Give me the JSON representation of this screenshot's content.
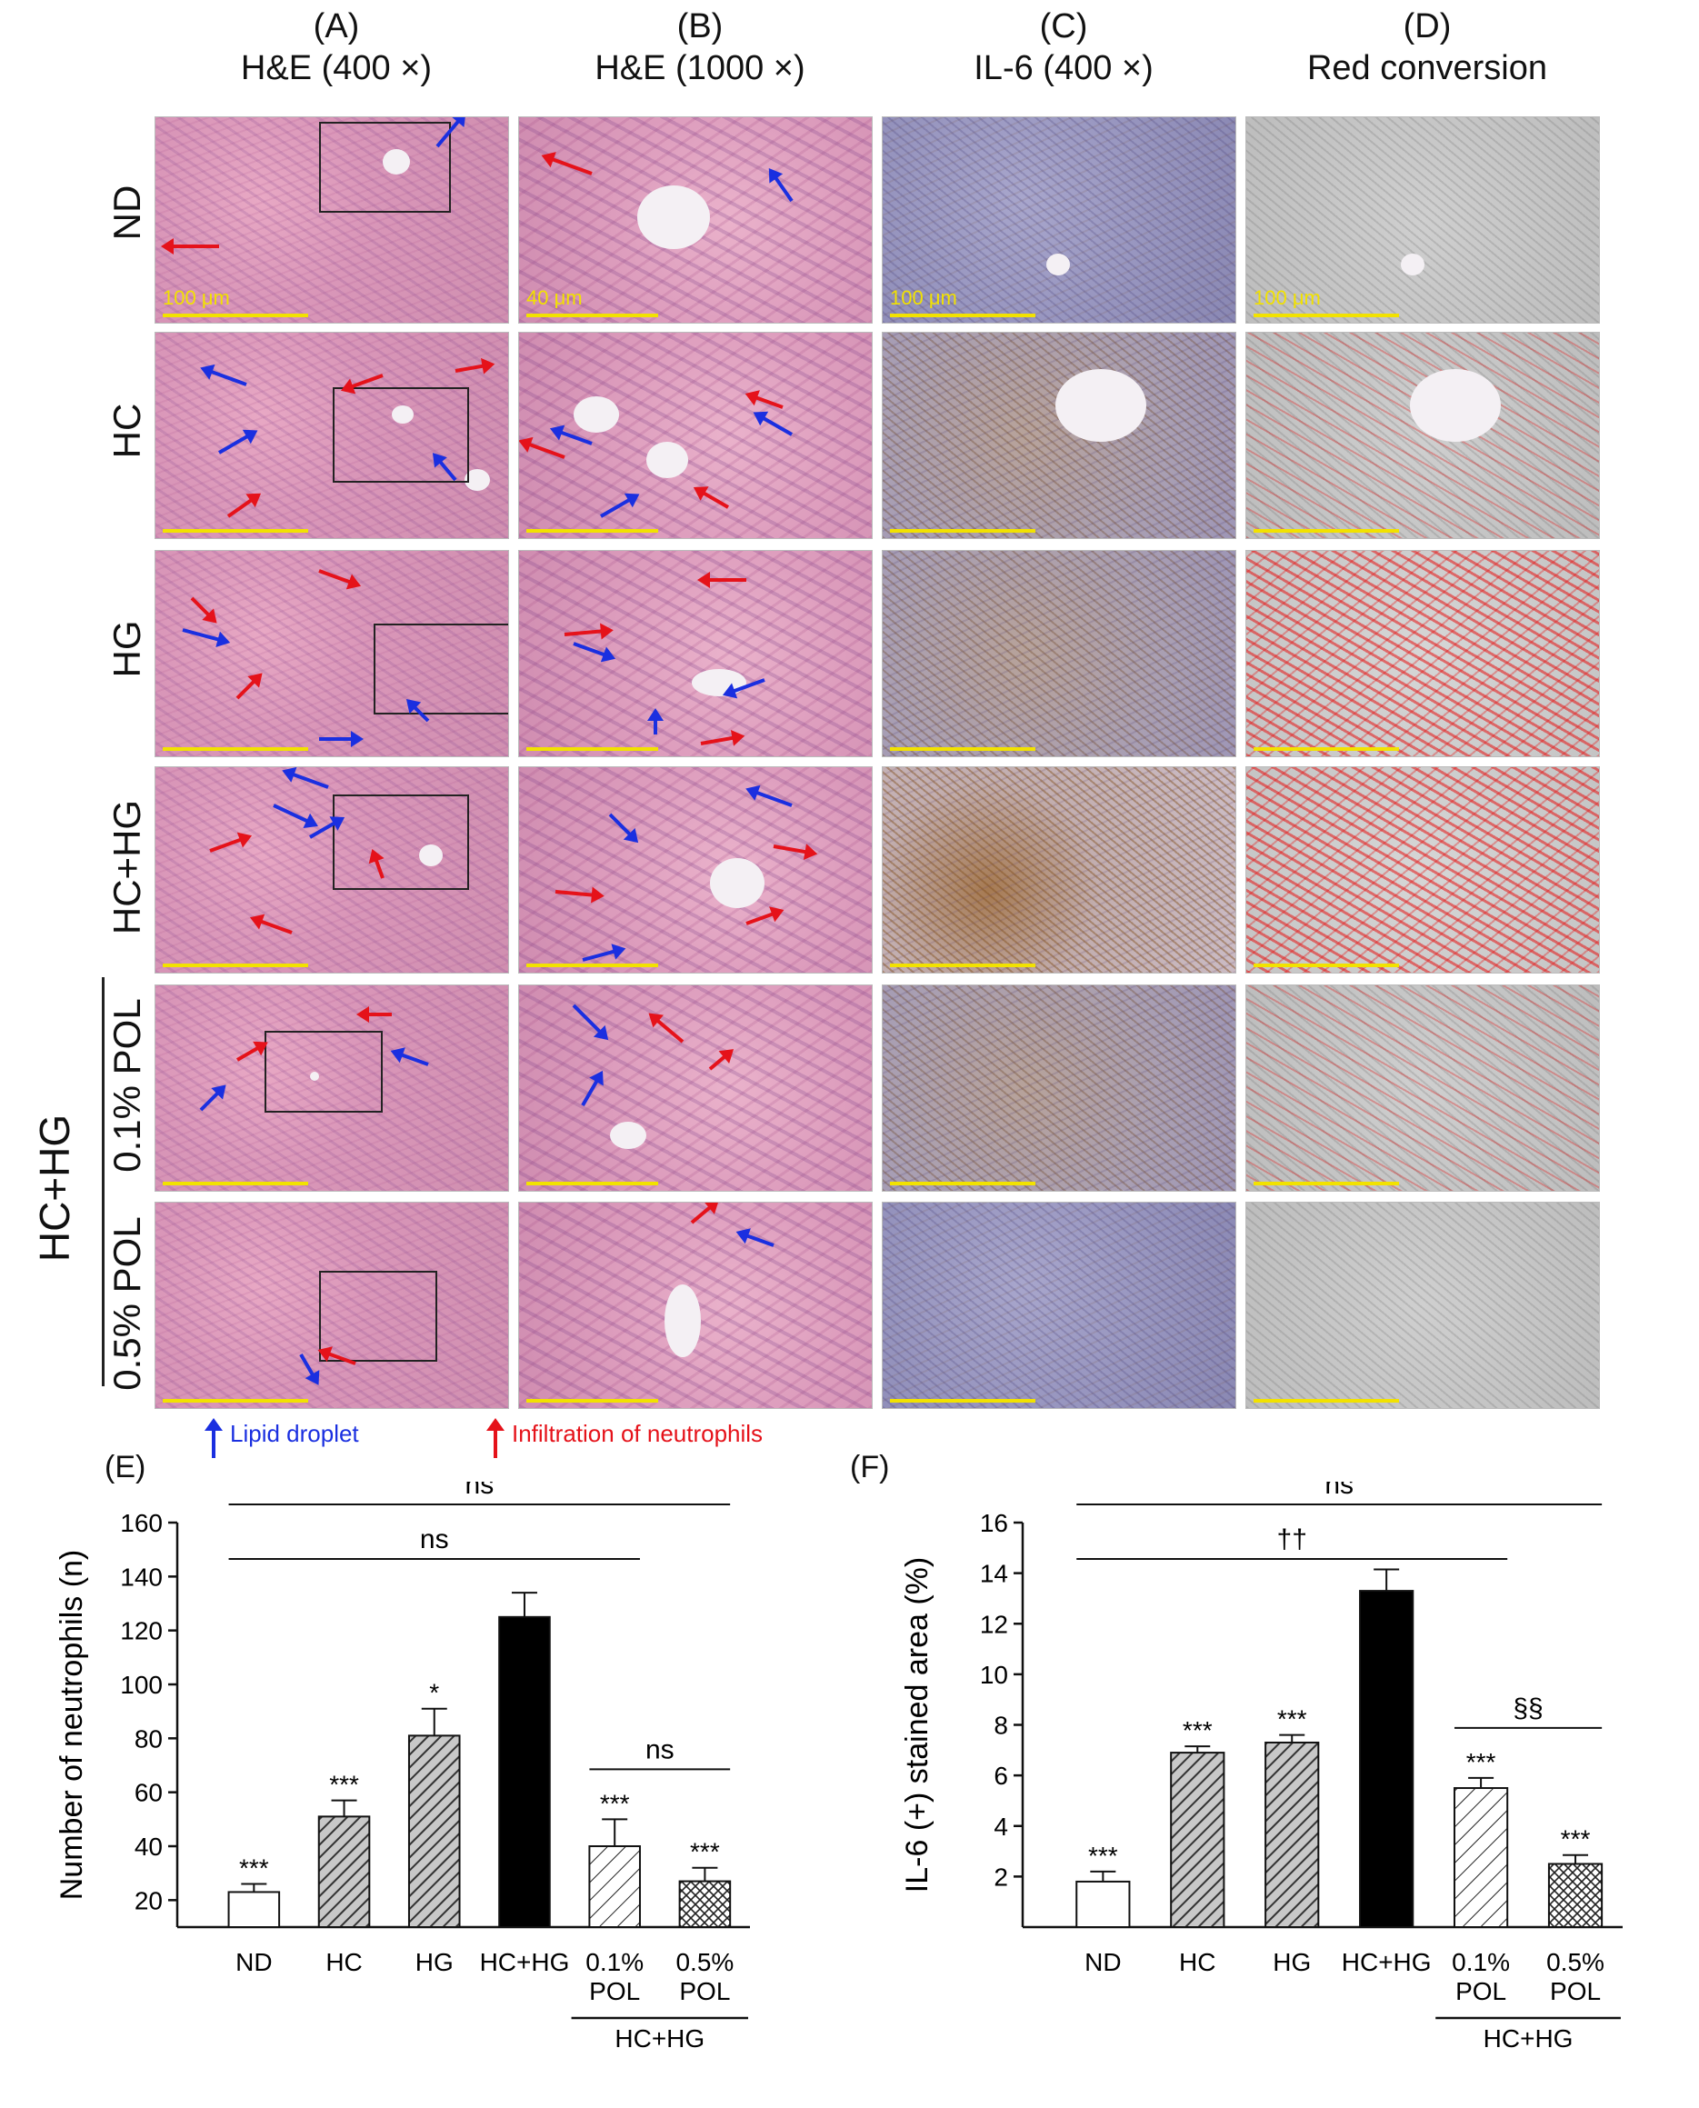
{
  "columns": [
    {
      "letter": "(A)",
      "title": "H&E (400 ×)"
    },
    {
      "letter": "(B)",
      "title": "H&E (1000 ×)"
    },
    {
      "letter": "(C)",
      "title": "IL-6 (400 ×)"
    },
    {
      "letter": "(D)",
      "title": "Red conversion"
    }
  ],
  "rows": [
    "ND",
    "HC",
    "HG",
    "HC+HG",
    "0.1% POL",
    "0.5% POL"
  ],
  "group_label": "HC+HG",
  "scale_labels": {
    "low_mag": "100 μm",
    "high_mag": "40 μm"
  },
  "legend": {
    "blue_label": "Lipid droplet",
    "red_label": "Infiltration of neutrophils",
    "blue_color": "#1a2fe0",
    "red_color": "#e5121a"
  },
  "panel_E": {
    "letter": "(E)"
  },
  "panel_F": {
    "letter": "(F)"
  },
  "chart_data": [
    {
      "type": "bar",
      "ylabel": "Number of neutrophils (n)",
      "ylim": [
        10,
        160
      ],
      "yticks": [
        20,
        40,
        60,
        80,
        100,
        120,
        140,
        160
      ],
      "categories": [
        "ND",
        "HC",
        "HG",
        "HC+HG",
        "0.1% POL",
        "0.5% POL"
      ],
      "category_lines": [
        [
          "ND"
        ],
        [
          "HC"
        ],
        [
          "HG"
        ],
        [
          "HC+HG"
        ],
        [
          "0.1%",
          "POL"
        ],
        [
          "0.5%",
          "POL"
        ]
      ],
      "group_label": "HC+HG",
      "values": [
        23,
        51,
        81,
        125,
        40,
        27
      ],
      "errors": [
        3,
        6,
        10,
        9,
        10,
        5
      ],
      "significance": [
        "***",
        "***",
        "*",
        "",
        "***",
        "***"
      ],
      "fills": [
        "white",
        "diag",
        "diag",
        "black",
        "diag-light",
        "cross"
      ],
      "brackets": [
        {
          "from": 0,
          "to": 5,
          "label": "ns"
        },
        {
          "from": 0,
          "to": 4,
          "label": "ns"
        },
        {
          "from": 4,
          "to": 5,
          "label": "ns"
        }
      ]
    },
    {
      "type": "bar",
      "ylabel": "IL-6 (+) stained area (%)",
      "ylim": [
        0,
        16
      ],
      "yticks": [
        2,
        4,
        6,
        8,
        10,
        12,
        14,
        16
      ],
      "categories": [
        "ND",
        "HC",
        "HG",
        "HC+HG",
        "0.1% POL",
        "0.5% POL"
      ],
      "category_lines": [
        [
          "ND"
        ],
        [
          "HC"
        ],
        [
          "HG"
        ],
        [
          "HC+HG"
        ],
        [
          "0.1%",
          "POL"
        ],
        [
          "0.5%",
          "POL"
        ]
      ],
      "group_label": "HC+HG",
      "values": [
        1.8,
        6.9,
        7.3,
        13.3,
        5.5,
        2.5
      ],
      "errors": [
        0.4,
        0.25,
        0.3,
        0.85,
        0.4,
        0.35
      ],
      "significance": [
        "***",
        "***",
        "***",
        "",
        "***",
        "***"
      ],
      "fills": [
        "white",
        "diag",
        "diag",
        "black",
        "diag-light",
        "cross"
      ],
      "brackets": [
        {
          "from": 0,
          "to": 5,
          "label": "ns"
        },
        {
          "from": 0,
          "to": 4,
          "label": "††"
        },
        {
          "from": 4,
          "to": 5,
          "label": "§§"
        }
      ]
    }
  ]
}
